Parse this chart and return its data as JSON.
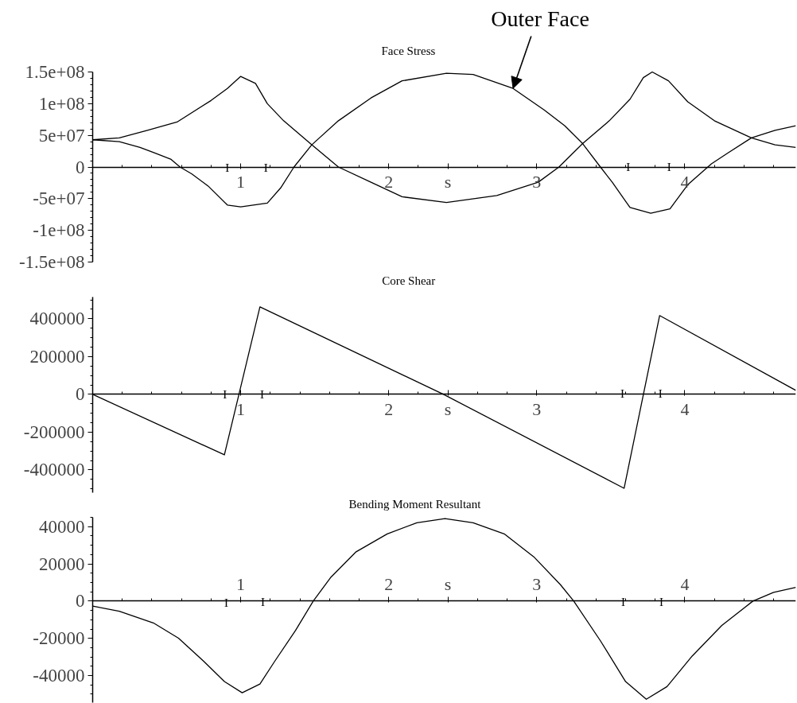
{
  "chart_data": [
    {
      "type": "line",
      "title": "Face Stress",
      "grid": false,
      "xlim": [
        0,
        4.75
      ],
      "xticks": [
        {
          "value": 0.2,
          "label": null
        },
        {
          "value": 0.4,
          "label": null
        },
        {
          "value": 0.6,
          "label": null
        },
        {
          "value": 0.8,
          "label": null
        },
        1,
        {
          "value": 1.2,
          "label": null
        },
        {
          "value": 1.4,
          "label": null
        },
        {
          "value": 1.6,
          "label": null
        },
        {
          "value": 1.8,
          "label": null
        },
        2,
        {
          "value": 2.2,
          "label": null
        },
        {
          "value": 2.4,
          "label": "s"
        },
        {
          "value": 2.6,
          "label": null
        },
        {
          "value": 2.8,
          "label": null
        },
        3,
        {
          "value": 3.2,
          "label": null
        },
        {
          "value": 3.4,
          "label": null
        },
        {
          "value": 3.6,
          "label": null
        },
        {
          "value": 3.8,
          "label": null
        },
        4,
        {
          "value": 4.2,
          "label": null
        },
        {
          "value": 4.4,
          "label": null
        },
        {
          "value": 4.6,
          "label": null
        }
      ],
      "ylim": [
        -150000000,
        150000000
      ],
      "yticks": [
        {
          "value": 150000000,
          "label": "1.5e+08"
        },
        {
          "value": 100000000,
          "label": "1e+08"
        },
        {
          "value": 50000000,
          "label": "5e+07"
        },
        0,
        {
          "value": -50000000,
          "label": "-5e+07"
        },
        {
          "value": -100000000,
          "label": "-1e+08"
        },
        {
          "value": -150000000,
          "label": "-1.5e+08"
        },
        {
          "value": 140000000,
          "label": null
        },
        {
          "value": 130000000,
          "label": null
        },
        {
          "value": 120000000,
          "label": null
        },
        {
          "value": 110000000,
          "label": null
        },
        {
          "value": 90000000,
          "label": null
        },
        {
          "value": 80000000,
          "label": null
        },
        {
          "value": 70000000,
          "label": null
        },
        {
          "value": 60000000,
          "label": null
        },
        {
          "value": 40000000,
          "label": null
        },
        {
          "value": 30000000,
          "label": null
        },
        {
          "value": 20000000,
          "label": null
        },
        {
          "value": 10000000,
          "label": null
        },
        {
          "value": -10000000,
          "label": null
        },
        {
          "value": -20000000,
          "label": null
        },
        {
          "value": -30000000,
          "label": null
        },
        {
          "value": -40000000,
          "label": null
        },
        {
          "value": -60000000,
          "label": null
        },
        {
          "value": -70000000,
          "label": null
        },
        {
          "value": -80000000,
          "label": null
        },
        {
          "value": -90000000,
          "label": null
        },
        {
          "value": -110000000,
          "label": null
        },
        {
          "value": -120000000,
          "label": null
        },
        {
          "value": -130000000,
          "label": null
        },
        {
          "value": -140000000,
          "label": null
        }
      ],
      "series": [
        {
          "color": "#000000",
          "x": [
            0,
            0.18,
            0.32,
            0.42,
            0.53,
            0.59,
            0.67,
            0.78,
            0.91,
            1.0,
            1.18,
            1.27,
            1.36,
            1.48,
            1.66,
            1.88,
            2.09,
            2.39,
            2.57,
            2.84,
            3.05,
            3.19,
            3.31,
            3.43,
            3.51,
            3.63,
            3.77,
            3.9,
            4.02,
            4.18,
            4.29,
            4.45,
            4.61,
            4.75
          ],
          "values": [
            43000000,
            40000000,
            31000000,
            22000000,
            12000000,
            0,
            -11000000,
            -30000000,
            -60000000,
            -63000000,
            -57000000,
            -33000000,
            0,
            35000000,
            73000000,
            109000000,
            136000000,
            148000000,
            146000000,
            124000000,
            90000000,
            65000000,
            37000000,
            0,
            -24000000,
            -64000000,
            -73000000,
            -66000000,
            -28000000,
            5000000,
            22000000,
            46000000,
            58000000,
            65000000
          ]
        },
        {
          "color": "#000000",
          "x": [
            0,
            0.18,
            0.37,
            0.57,
            0.8,
            0.91,
            1.0,
            1.1,
            1.18,
            1.29,
            1.48,
            1.66,
            1.88,
            2.09,
            2.39,
            2.73,
            3.01,
            3.15,
            3.31,
            3.49,
            3.63,
            3.72,
            3.78,
            3.89,
            4.02,
            4.2,
            4.45,
            4.61,
            4.75
          ],
          "values": [
            43000000,
            46000000,
            58000000,
            71000000,
            105000000,
            124000000,
            143000000,
            132000000,
            100000000,
            73000000,
            35000000,
            0,
            -24000000,
            -47000000,
            -56000000,
            -45000000,
            -24000000,
            0,
            37000000,
            73000000,
            107000000,
            141000000,
            150000000,
            136000000,
            103000000,
            73000000,
            46000000,
            35000000,
            31000000
          ]
        }
      ],
      "annotations": [
        {
          "text": "Outer Face",
          "x": 2.84,
          "y": 124000000
        },
        "I",
        "I",
        "I",
        "I"
      ]
    },
    {
      "type": "line",
      "title": "Core Shear",
      "grid": false,
      "xlim": [
        0,
        4.75
      ],
      "xticks": [
        {
          "value": 0.2,
          "label": null
        },
        {
          "value": 0.4,
          "label": null
        },
        {
          "value": 0.6,
          "label": null
        },
        {
          "value": 0.8,
          "label": null
        },
        1,
        {
          "value": 1.2,
          "label": null
        },
        {
          "value": 1.4,
          "label": null
        },
        {
          "value": 1.6,
          "label": null
        },
        {
          "value": 1.8,
          "label": null
        },
        2,
        {
          "value": 2.2,
          "label": null
        },
        {
          "value": 2.4,
          "label": "s"
        },
        {
          "value": 2.6,
          "label": null
        },
        {
          "value": 2.8,
          "label": null
        },
        3,
        {
          "value": 3.2,
          "label": null
        },
        {
          "value": 3.4,
          "label": null
        },
        {
          "value": 3.6,
          "label": null
        },
        {
          "value": 3.8,
          "label": null
        },
        4,
        {
          "value": 4.2,
          "label": null
        },
        {
          "value": 4.4,
          "label": null
        },
        {
          "value": 4.6,
          "label": null
        }
      ],
      "ylim": [
        -520000,
        515000
      ],
      "yticks": [
        400000,
        200000,
        0,
        -200000,
        -400000,
        {
          "value": 500000,
          "label": null
        },
        {
          "value": 450000,
          "label": null
        },
        {
          "value": 350000,
          "label": null
        },
        {
          "value": 300000,
          "label": null
        },
        {
          "value": 250000,
          "label": null
        },
        {
          "value": 150000,
          "label": null
        },
        {
          "value": 100000,
          "label": null
        },
        {
          "value": 50000,
          "label": null
        },
        {
          "value": -50000,
          "label": null
        },
        {
          "value": -100000,
          "label": null
        },
        {
          "value": -150000,
          "label": null
        },
        {
          "value": -250000,
          "label": null
        },
        {
          "value": -300000,
          "label": null
        },
        {
          "value": -350000,
          "label": null
        },
        {
          "value": -450000,
          "label": null
        },
        {
          "value": -500000,
          "label": null
        }
      ],
      "series": [
        {
          "color": "#000000",
          "x": [
            0,
            0.89,
            1.13,
            2.37,
            3.59,
            3.83,
            4.75
          ],
          "values": [
            0,
            -320000,
            463000,
            0,
            -497000,
            417000,
            21000
          ]
        }
      ],
      "annotations": [
        "I",
        "I",
        "I",
        "I"
      ]
    },
    {
      "type": "line",
      "title": "Bending Moment Resultant",
      "grid": false,
      "xlim": [
        0,
        4.75
      ],
      "xticks": [
        {
          "value": 0.2,
          "label": null
        },
        {
          "value": 0.4,
          "label": null
        },
        {
          "value": 0.6,
          "label": null
        },
        {
          "value": 0.8,
          "label": null
        },
        1,
        {
          "value": 1.2,
          "label": null
        },
        {
          "value": 1.4,
          "label": null
        },
        {
          "value": 1.6,
          "label": null
        },
        {
          "value": 1.8,
          "label": null
        },
        2,
        {
          "value": 2.2,
          "label": null
        },
        {
          "value": 2.4,
          "label": "s"
        },
        {
          "value": 2.6,
          "label": null
        },
        {
          "value": 2.8,
          "label": null
        },
        3,
        {
          "value": 3.2,
          "label": null
        },
        {
          "value": 3.4,
          "label": null
        },
        {
          "value": 3.6,
          "label": null
        },
        {
          "value": 3.8,
          "label": null
        },
        4,
        {
          "value": 4.2,
          "label": null
        },
        {
          "value": 4.4,
          "label": null
        },
        {
          "value": 4.6,
          "label": null
        }
      ],
      "ylim": [
        -54500,
        45000
      ],
      "yticks": [
        40000,
        20000,
        0,
        -20000,
        -40000,
        {
          "value": 45000,
          "label": null
        },
        {
          "value": 35000,
          "label": null
        },
        {
          "value": 30000,
          "label": null
        },
        {
          "value": 25000,
          "label": null
        },
        {
          "value": 15000,
          "label": null
        },
        {
          "value": 10000,
          "label": null
        },
        {
          "value": 5000,
          "label": null
        },
        {
          "value": -5000,
          "label": null
        },
        {
          "value": -10000,
          "label": null
        },
        {
          "value": -15000,
          "label": null
        },
        {
          "value": -25000,
          "label": null
        },
        {
          "value": -30000,
          "label": null
        },
        {
          "value": -35000,
          "label": null
        },
        {
          "value": -45000,
          "label": null
        },
        {
          "value": -50000,
          "label": null
        }
      ],
      "series": [
        {
          "color": "#000000",
          "x": [
            0,
            0.18,
            0.41,
            0.58,
            0.75,
            0.89,
            1.01,
            1.13,
            1.23,
            1.37,
            1.49,
            1.61,
            1.78,
            1.99,
            2.19,
            2.38,
            2.57,
            2.78,
            2.98,
            3.16,
            3.25,
            3.43,
            3.6,
            3.74,
            3.88,
            4.05,
            4.25,
            4.46,
            4.6,
            4.75
          ],
          "values": [
            -2700,
            -5400,
            -11700,
            -19900,
            -32300,
            -43200,
            -49200,
            -44500,
            -32300,
            -15800,
            0,
            12900,
            26500,
            36100,
            42100,
            44300,
            42100,
            36100,
            23800,
            8800,
            0,
            -21300,
            -43200,
            -52700,
            -45900,
            -29500,
            -13100,
            0,
            4700,
            7400
          ]
        }
      ],
      "annotations": [
        "I",
        "I",
        "I",
        "I"
      ]
    }
  ]
}
